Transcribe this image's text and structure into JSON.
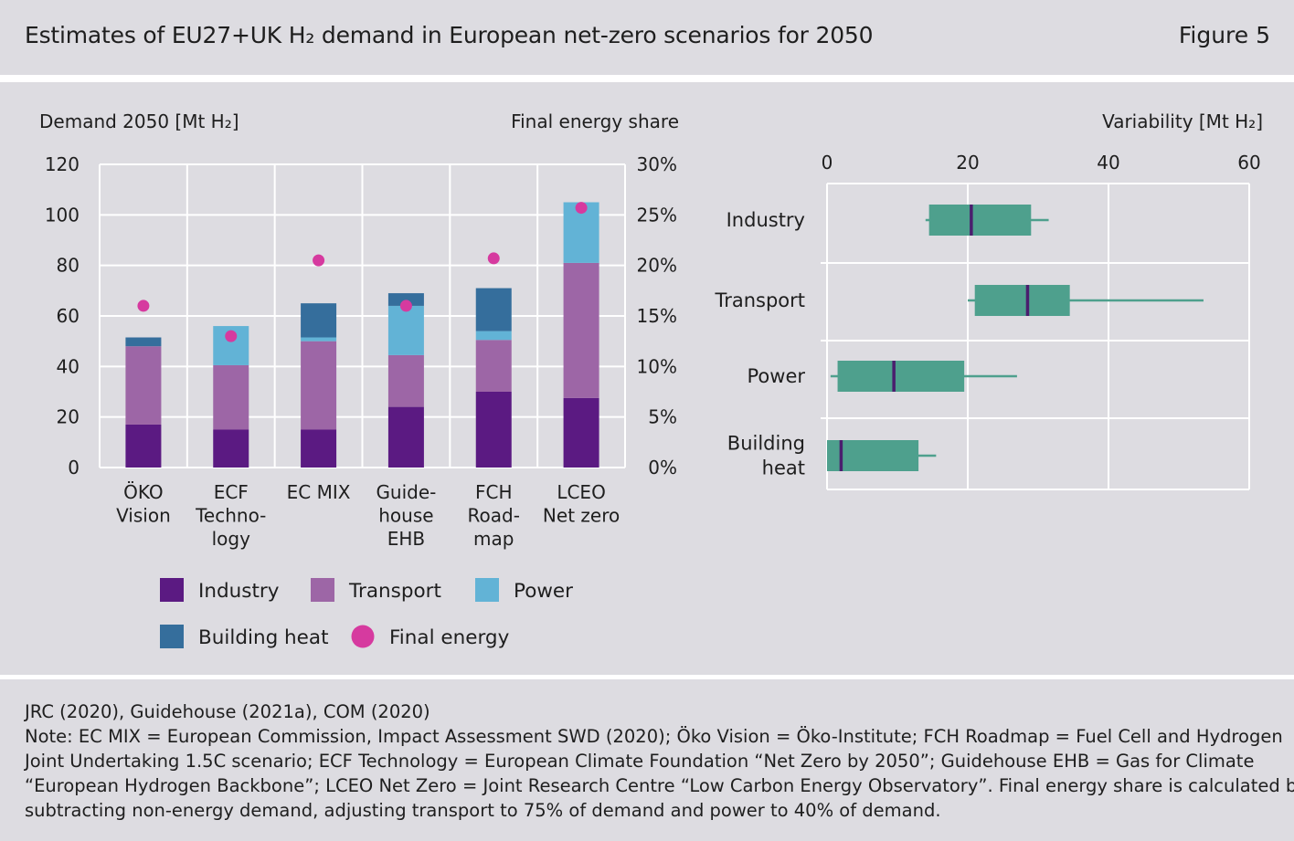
{
  "header": {
    "title": "Estimates of EU27+UK H₂ demand in European net-zero scenarios for 2050",
    "figure_label": "Figure 5"
  },
  "colors": {
    "Industry": "#5b1a82",
    "Transport": "#9d66a6",
    "Power": "#62b3d6",
    "Building heat": "#356e9c",
    "Final energy": "#d63a9f",
    "box": "#4ea08d",
    "median": "#4a1e6e",
    "panel": "#dddce1",
    "grid": "#ffffff"
  },
  "chart_data": [
    {
      "type": "bar",
      "stacked": true,
      "ylabel": "Demand 2050 [Mt H₂]",
      "y2label": "Final energy share",
      "ylim": [
        0,
        120
      ],
      "yticks": [
        0,
        20,
        40,
        60,
        80,
        100,
        120
      ],
      "y2lim": [
        0,
        30
      ],
      "y2ticks": [
        "0%",
        "5%",
        "10%",
        "15%",
        "20%",
        "25%",
        "30%"
      ],
      "categories": [
        [
          "ÖKO",
          "Vision"
        ],
        [
          "ECF",
          "Techno-",
          "logy"
        ],
        [
          "EC MIX"
        ],
        [
          "Guide-",
          "house",
          "EHB"
        ],
        [
          "FCH",
          "Road-",
          "map"
        ],
        [
          "LCEO",
          "Net zero"
        ]
      ],
      "series": [
        {
          "name": "Industry",
          "values": [
            17,
            15,
            15,
            24,
            30,
            27.5
          ]
        },
        {
          "name": "Transport",
          "values": [
            31,
            25.5,
            35,
            20.5,
            20.5,
            53.5
          ]
        },
        {
          "name": "Power",
          "values": [
            0,
            15.5,
            1.5,
            19.5,
            3.5,
            24
          ]
        },
        {
          "name": "Building heat",
          "values": [
            3.5,
            0,
            13.5,
            5,
            17,
            0
          ]
        }
      ],
      "final_energy_share_pct": [
        16,
        13,
        20.5,
        16,
        20.7,
        25.7
      ],
      "legend": {
        "position": "bottom",
        "items": [
          "Industry",
          "Transport",
          "Power",
          "Building heat",
          "Final energy"
        ]
      },
      "grid": true
    },
    {
      "type": "box",
      "xlabel": "Variability [Mt H₂]",
      "xlim": [
        0,
        60
      ],
      "xticks": [
        0,
        20,
        40,
        60
      ],
      "categories": [
        [
          "Industry"
        ],
        [
          "Transport"
        ],
        [
          "Power"
        ],
        [
          "Building",
          "heat"
        ]
      ],
      "boxes": [
        {
          "name": "Industry",
          "min": 14,
          "q1": 14.5,
          "median": 20.5,
          "q3": 29,
          "max": 31.5
        },
        {
          "name": "Transport",
          "min": 20,
          "q1": 21,
          "median": 28.5,
          "q3": 34.5,
          "max": 53.5
        },
        {
          "name": "Power",
          "min": 0.5,
          "q1": 1.5,
          "median": 9.5,
          "q3": 19.5,
          "max": 27
        },
        {
          "name": "Building heat",
          "min": 0,
          "q1": 0,
          "median": 2,
          "q3": 13,
          "max": 15.5
        }
      ],
      "grid": true
    }
  ],
  "footer": {
    "lines": [
      "JRC (2020), Guidehouse (2021a), COM (2020)",
      "Note: EC MIX = European Commission, Impact Assessment SWD (2020); Öko Vision =  Öko-Institute; FCH Roadmap = Fuel Cell and Hydrogen",
      "Joint Undertaking 1.5C scenario; ECF Technology = European Climate Foundation “Net Zero by 2050”; Guidehouse EHB = Gas for Climate",
      "“European Hydrogen Backbone”; LCEO Net Zero = Joint Research Centre “Low Carbon Energy Observatory”. Final energy share is calculated by",
      "subtracting non-energy demand, adjusting transport to 75% of demand and power to 40% of demand."
    ]
  }
}
